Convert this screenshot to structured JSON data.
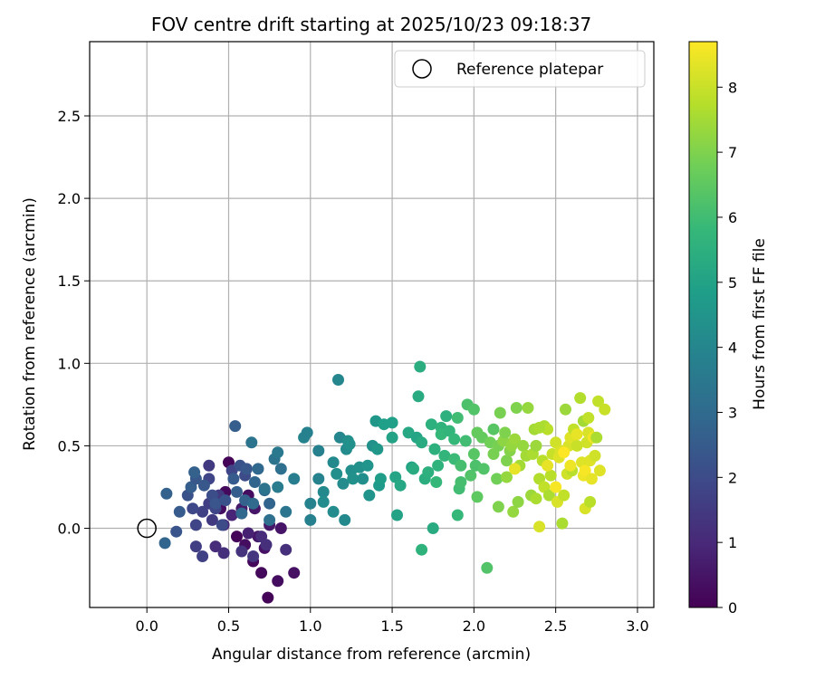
{
  "chart_data": {
    "type": "scatter",
    "title": "FOV centre drift starting at 2025/10/23 09:18:37",
    "xlabel": "Angular distance from reference (arcmin)",
    "ylabel": "Rotation from reference (arcmin)",
    "xlim": [
      -0.35,
      3.1
    ],
    "ylim": [
      -0.48,
      2.95
    ],
    "x_ticks": [
      0.0,
      0.5,
      1.0,
      1.5,
      2.0,
      2.5,
      3.0
    ],
    "y_ticks": [
      0.0,
      0.5,
      1.0,
      1.5,
      2.0,
      2.5
    ],
    "x_tick_labels": [
      "0.0",
      "0.5",
      "1.0",
      "1.5",
      "2.0",
      "2.5",
      "3.0"
    ],
    "y_tick_labels": [
      "0.0",
      "0.5",
      "1.0",
      "1.5",
      "2.0",
      "2.5"
    ],
    "grid": true,
    "legend": {
      "position": "top-right",
      "entries": [
        "Reference platepar"
      ]
    },
    "reference_point": {
      "label": "Reference platepar",
      "x": 0.0,
      "y": 0.0
    },
    "colorbar": {
      "label": "Hours from first FF file",
      "min": 0,
      "max": 8.7,
      "ticks": [
        0,
        1,
        2,
        3,
        4,
        5,
        6,
        7,
        8
      ],
      "tick_labels": [
        "0",
        "1",
        "2",
        "3",
        "4",
        "5",
        "6",
        "7",
        "8"
      ],
      "colormap": "viridis"
    },
    "points": [
      [
        0.5,
        0.4,
        0.1
      ],
      [
        0.48,
        0.22,
        0.2
      ],
      [
        0.45,
        0.12,
        0.3
      ],
      [
        0.55,
        -0.05,
        0.1
      ],
      [
        0.6,
        -0.1,
        0.3
      ],
      [
        0.65,
        -0.2,
        0.2
      ],
      [
        0.7,
        -0.27,
        0.2
      ],
      [
        0.74,
        -0.42,
        0.1
      ],
      [
        0.8,
        -0.32,
        0.3
      ],
      [
        0.9,
        -0.27,
        0.4
      ],
      [
        0.68,
        -0.05,
        0.5
      ],
      [
        0.72,
        -0.12,
        0.4
      ],
      [
        0.75,
        0.02,
        0.6
      ],
      [
        0.82,
        0.0,
        0.5
      ],
      [
        0.66,
        0.12,
        0.5
      ],
      [
        0.58,
        0.12,
        0.6
      ],
      [
        0.62,
        0.2,
        0.3
      ],
      [
        0.62,
        -0.03,
        0.8
      ],
      [
        0.52,
        0.08,
        0.9
      ],
      [
        0.47,
        0.02,
        1.0
      ],
      [
        0.42,
        -0.11,
        1.1
      ],
      [
        0.47,
        -0.15,
        1.2
      ],
      [
        0.58,
        -0.14,
        1.3
      ],
      [
        0.65,
        -0.17,
        1.4
      ],
      [
        0.7,
        -0.05,
        1.1
      ],
      [
        0.73,
        -0.1,
        1.2
      ],
      [
        0.85,
        -0.13,
        1.2
      ],
      [
        0.4,
        0.05,
        1.5
      ],
      [
        0.38,
        0.15,
        1.6
      ],
      [
        0.34,
        0.1,
        1.7
      ],
      [
        0.3,
        -0.11,
        1.6
      ],
      [
        0.34,
        -0.17,
        1.7
      ],
      [
        0.3,
        0.02,
        1.8
      ],
      [
        0.28,
        0.12,
        1.9
      ],
      [
        0.44,
        0.2,
        1.5
      ],
      [
        0.38,
        0.3,
        1.8
      ],
      [
        0.38,
        0.38,
        1.5
      ],
      [
        0.42,
        0.12,
        1.8
      ],
      [
        0.46,
        0.02,
        2.0
      ],
      [
        0.52,
        0.35,
        1.8
      ],
      [
        0.6,
        0.32,
        2.0
      ],
      [
        0.25,
        0.2,
        2.2
      ],
      [
        0.2,
        0.1,
        2.5
      ],
      [
        0.18,
        -0.02,
        2.3
      ],
      [
        0.12,
        0.21,
        2.7
      ],
      [
        0.11,
        -0.09,
        2.8
      ],
      [
        0.27,
        0.25,
        2.6
      ],
      [
        0.3,
        0.3,
        2.4
      ],
      [
        0.29,
        0.34,
        2.7
      ],
      [
        0.35,
        0.26,
        2.4
      ],
      [
        0.4,
        0.2,
        2.1
      ],
      [
        0.42,
        0.15,
        2.3
      ],
      [
        0.48,
        0.17,
        2.2
      ],
      [
        0.53,
        0.3,
        2.5
      ],
      [
        0.55,
        0.22,
        2.6
      ],
      [
        0.57,
        0.38,
        2.2
      ],
      [
        0.61,
        0.36,
        2.4
      ],
      [
        0.6,
        0.17,
        2.7
      ],
      [
        0.58,
        0.09,
        2.9
      ],
      [
        0.65,
        0.15,
        3.0
      ],
      [
        0.72,
        0.23,
        3.0
      ],
      [
        0.75,
        0.15,
        2.8
      ],
      [
        0.75,
        0.05,
        3.2
      ],
      [
        0.66,
        0.28,
        2.8
      ],
      [
        0.68,
        0.36,
        2.9
      ],
      [
        0.64,
        0.52,
        3.3
      ],
      [
        0.54,
        0.62,
        2.6
      ],
      [
        0.72,
        0.24,
        3.3
      ],
      [
        0.78,
        0.42,
        3.3
      ],
      [
        0.8,
        0.46,
        3.5
      ],
      [
        0.82,
        0.36,
        3.2
      ],
      [
        0.8,
        0.25,
        3.6
      ],
      [
        0.85,
        0.1,
        3.4
      ],
      [
        0.9,
        0.3,
        3.7
      ],
      [
        0.96,
        0.55,
        3.9
      ],
      [
        0.98,
        0.58,
        3.8
      ],
      [
        1.0,
        0.05,
        3.8
      ],
      [
        1.0,
        0.15,
        3.9
      ],
      [
        1.05,
        0.3,
        3.9
      ],
      [
        1.05,
        0.47,
        3.8
      ],
      [
        1.08,
        0.22,
        4.1
      ],
      [
        1.08,
        0.16,
        4.2
      ],
      [
        1.14,
        0.4,
        4.1
      ],
      [
        1.14,
        0.1,
        4.2
      ],
      [
        1.16,
        0.33,
        4.3
      ],
      [
        1.17,
        0.9,
        4.0
      ],
      [
        1.18,
        0.55,
        4.0
      ],
      [
        1.2,
        0.27,
        4.2
      ],
      [
        1.21,
        0.05,
        4.1
      ],
      [
        1.22,
        0.48,
        4.2
      ],
      [
        1.23,
        0.53,
        4.3
      ],
      [
        1.24,
        0.51,
        4.4
      ],
      [
        1.25,
        0.35,
        4.3
      ],
      [
        1.26,
        0.3,
        4.4
      ],
      [
        1.3,
        0.37,
        4.4
      ],
      [
        1.32,
        0.3,
        4.3
      ],
      [
        1.35,
        0.38,
        4.5
      ],
      [
        1.36,
        0.2,
        4.5
      ],
      [
        1.38,
        0.5,
        4.4
      ],
      [
        1.4,
        0.65,
        4.6
      ],
      [
        1.41,
        0.48,
        4.6
      ],
      [
        1.42,
        0.26,
        4.7
      ],
      [
        1.43,
        0.3,
        4.8
      ],
      [
        1.45,
        0.63,
        4.9
      ],
      [
        1.5,
        0.64,
        4.9
      ],
      [
        1.5,
        0.55,
        5.0
      ],
      [
        1.52,
        0.31,
        5.1
      ],
      [
        1.53,
        0.08,
        5.0
      ],
      [
        1.55,
        0.26,
        5.2
      ],
      [
        1.6,
        0.58,
        5.2
      ],
      [
        1.62,
        0.37,
        5.0
      ],
      [
        1.63,
        0.36,
        5.3
      ],
      [
        1.65,
        0.55,
        5.1
      ],
      [
        1.66,
        0.8,
        5.3
      ],
      [
        1.67,
        0.98,
        5.4
      ],
      [
        1.68,
        0.52,
        5.3
      ],
      [
        1.68,
        -0.13,
        5.6
      ],
      [
        1.7,
        0.3,
        5.4
      ],
      [
        1.72,
        0.34,
        5.5
      ],
      [
        1.74,
        0.63,
        5.5
      ],
      [
        1.75,
        0.0,
        5.3
      ],
      [
        1.76,
        0.48,
        5.5
      ],
      [
        1.77,
        0.28,
        5.8
      ],
      [
        1.78,
        0.38,
        5.6
      ],
      [
        1.8,
        0.61,
        5.6
      ],
      [
        1.8,
        0.57,
        5.8
      ],
      [
        1.82,
        0.44,
        5.7
      ],
      [
        1.83,
        0.68,
        5.5
      ],
      [
        1.85,
        0.59,
        5.7
      ],
      [
        1.88,
        0.54,
        5.8
      ],
      [
        1.88,
        0.42,
        5.9
      ],
      [
        1.9,
        0.67,
        6.0
      ],
      [
        1.9,
        0.08,
        5.8
      ],
      [
        1.91,
        0.24,
        6.0
      ],
      [
        1.92,
        0.28,
        6.1
      ],
      [
        1.92,
        0.38,
        6.1
      ],
      [
        1.95,
        0.53,
        6.0
      ],
      [
        1.96,
        0.75,
        6.2
      ],
      [
        1.98,
        0.32,
        6.3
      ],
      [
        2.0,
        0.72,
        6.3
      ],
      [
        2.0,
        0.45,
        6.4
      ],
      [
        2.01,
        0.38,
        6.2
      ],
      [
        2.02,
        0.19,
        6.5
      ],
      [
        2.02,
        0.58,
        6.6
      ],
      [
        2.05,
        0.55,
        6.6
      ],
      [
        2.06,
        0.36,
        6.3
      ],
      [
        2.08,
        -0.24,
        6.3
      ],
      [
        2.1,
        0.52,
        6.8
      ],
      [
        2.12,
        0.6,
        6.4
      ],
      [
        2.12,
        0.45,
        6.9
      ],
      [
        2.14,
        0.3,
        6.8
      ],
      [
        2.15,
        0.5,
        6.9
      ],
      [
        2.15,
        0.13,
        7.0
      ],
      [
        2.16,
        0.7,
        6.9
      ],
      [
        2.18,
        0.53,
        7.2
      ],
      [
        2.19,
        0.58,
        7.0
      ],
      [
        2.2,
        0.31,
        7.3
      ],
      [
        2.2,
        0.41,
        7.0
      ],
      [
        2.22,
        0.47,
        7.1
      ],
      [
        2.23,
        0.5,
        7.3
      ],
      [
        2.24,
        0.1,
        7.3
      ],
      [
        2.25,
        0.54,
        7.4
      ],
      [
        2.26,
        0.73,
        7.0
      ],
      [
        2.27,
        0.16,
        7.2
      ],
      [
        2.28,
        0.38,
        7.5
      ],
      [
        2.3,
        0.5,
        7.3
      ],
      [
        2.32,
        0.44,
        7.5
      ],
      [
        2.33,
        0.73,
        7.3
      ],
      [
        2.35,
        0.2,
        7.4
      ],
      [
        2.36,
        0.45,
        7.6
      ],
      [
        2.37,
        0.6,
        7.5
      ],
      [
        2.38,
        0.18,
        7.6
      ],
      [
        2.38,
        0.5,
        7.4
      ],
      [
        2.4,
        0.01,
        8.2
      ],
      [
        2.4,
        0.3,
        7.7
      ],
      [
        2.42,
        0.41,
        7.8
      ],
      [
        2.43,
        0.25,
        7.9
      ],
      [
        2.43,
        0.62,
        7.6
      ],
      [
        2.45,
        0.6,
        7.8
      ],
      [
        2.46,
        0.2,
        7.6
      ],
      [
        2.47,
        0.32,
        7.8
      ],
      [
        2.48,
        0.45,
        8.0
      ],
      [
        2.5,
        0.52,
        8.1
      ],
      [
        2.51,
        0.16,
        8.2
      ],
      [
        2.52,
        0.43,
        8.3
      ],
      [
        2.53,
        0.47,
        8.2
      ],
      [
        2.54,
        0.03,
        7.6
      ],
      [
        2.55,
        0.2,
        7.9
      ],
      [
        2.56,
        0.72,
        7.4
      ],
      [
        2.57,
        0.33,
        8.1
      ],
      [
        2.58,
        0.5,
        8.2
      ],
      [
        2.59,
        0.55,
        8.3
      ],
      [
        2.6,
        0.35,
        7.8
      ],
      [
        2.61,
        0.6,
        7.9
      ],
      [
        2.63,
        0.5,
        8.0
      ],
      [
        2.65,
        0.79,
        7.7
      ],
      [
        2.66,
        0.4,
        8.3
      ],
      [
        2.67,
        0.65,
        7.5
      ],
      [
        2.67,
        0.32,
        8.5
      ],
      [
        2.68,
        0.12,
        8.2
      ],
      [
        2.68,
        0.35,
        8.6
      ],
      [
        2.69,
        0.52,
        8.1
      ],
      [
        2.7,
        0.67,
        7.9
      ],
      [
        2.7,
        0.58,
        8.2
      ],
      [
        2.71,
        0.41,
        8.3
      ],
      [
        2.71,
        0.16,
        7.8
      ],
      [
        2.72,
        0.3,
        8.4
      ],
      [
        2.73,
        0.55,
        8.5
      ],
      [
        2.74,
        0.44,
        8.1
      ],
      [
        2.75,
        0.55,
        7.6
      ],
      [
        2.76,
        0.77,
        7.9
      ],
      [
        2.77,
        0.35,
        8.3
      ],
      [
        2.8,
        0.72,
        8.0
      ],
      [
        2.4,
        0.61,
        7.6
      ],
      [
        2.45,
        0.38,
        8.4
      ],
      [
        2.5,
        0.25,
        8.6
      ],
      [
        2.55,
        0.46,
        8.7
      ],
      [
        2.59,
        0.38,
        8.5
      ],
      [
        2.63,
        0.57,
        8.4
      ],
      [
        2.25,
        0.36,
        8.4
      ]
    ]
  }
}
